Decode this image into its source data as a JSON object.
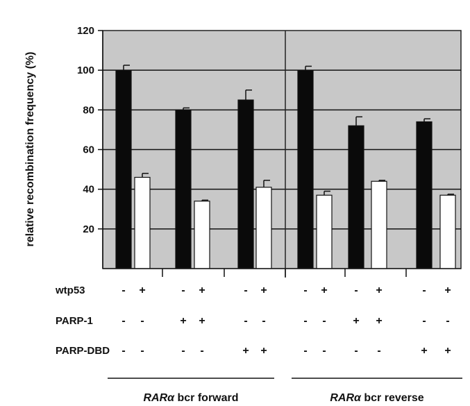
{
  "chart_data": {
    "type": "bar",
    "ylabel": "relative recombination frequency (%)",
    "ylim": [
      0,
      120
    ],
    "yticks": [
      "20",
      "40",
      "60",
      "80",
      "100",
      "120"
    ],
    "grid": true,
    "colors": {
      "plot_bg": "#c8c8c8",
      "black_bar": "#0a0a0a",
      "white_bar": "#ffffff"
    },
    "conditions": [
      {
        "label": "wtp53",
        "signs": [
          "-",
          "+",
          "-",
          "+",
          "-",
          "+",
          "-",
          "+",
          "-",
          "+",
          "-",
          "+"
        ]
      },
      {
        "label": "PARP-1",
        "signs": [
          "-",
          "-",
          "+",
          "+",
          "-",
          "-",
          "-",
          "-",
          "+",
          "+",
          "-",
          "-"
        ]
      },
      {
        "label": "PARP-DBD",
        "signs": [
          "-",
          "-",
          "-",
          "-",
          "+",
          "+",
          "-",
          "-",
          "-",
          "-",
          "+",
          "+"
        ]
      }
    ],
    "groups": [
      {
        "label_italic": "RARα",
        "label_rest": " bcr forward"
      },
      {
        "label_italic": "RARα",
        "label_rest": " bcr reverse"
      }
    ],
    "bars": [
      {
        "value": 100,
        "error": 2.5,
        "fill": "black"
      },
      {
        "value": 46,
        "error": 2,
        "fill": "white"
      },
      {
        "value": 80,
        "error": 1,
        "fill": "black"
      },
      {
        "value": 34,
        "error": 0.5,
        "fill": "white"
      },
      {
        "value": 85,
        "error": 5,
        "fill": "black"
      },
      {
        "value": 41,
        "error": 3.5,
        "fill": "white"
      },
      {
        "value": 100,
        "error": 2,
        "fill": "black"
      },
      {
        "value": 37,
        "error": 2,
        "fill": "white"
      },
      {
        "value": 72,
        "error": 4.5,
        "fill": "black"
      },
      {
        "value": 44,
        "error": 0.5,
        "fill": "white"
      },
      {
        "value": 74,
        "error": 1.5,
        "fill": "black"
      },
      {
        "value": 37,
        "error": 0.5,
        "fill": "white"
      }
    ]
  }
}
